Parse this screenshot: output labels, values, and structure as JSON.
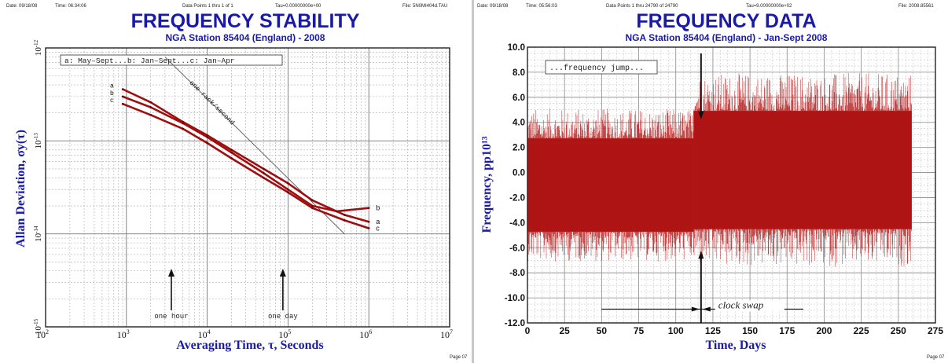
{
  "chart_data": [
    {
      "type": "line",
      "header": {
        "date": "Date: 09/18/08",
        "time": "Time: 06:34:06",
        "points": "Data Points 1 thru 1 of 1",
        "tau": "Tau=0.00000000e+00",
        "file": "File: 5N0MI404d.TAU"
      },
      "title": "FREQUENCY STABILITY",
      "subtitle": "NGA Station 85404 (England) - 2008",
      "xlabel": "Averaging Time, τ, Seconds",
      "ylabel": "Allan Deviation, σy(τ)",
      "x_scale": "log",
      "y_scale": "log",
      "xlim": [
        100,
        10000000
      ],
      "ylim": [
        1e-15,
        1e-12
      ],
      "x_ticks": [
        {
          "base": "10",
          "exp": "2"
        },
        {
          "base": "10",
          "exp": "3"
        },
        {
          "base": "10",
          "exp": "4"
        },
        {
          "base": "10",
          "exp": "5"
        },
        {
          "base": "10",
          "exp": "6"
        },
        {
          "base": "10",
          "exp": "7"
        }
      ],
      "y_ticks": [
        {
          "base": "10",
          "exp": "-12"
        },
        {
          "base": "10",
          "exp": "-13"
        },
        {
          "base": "10",
          "exp": "-14"
        },
        {
          "base": "10",
          "exp": "-15"
        }
      ],
      "grid": true,
      "legend_box": "a: May–Sept...b: Jan–Sept...c: Jan–Apr",
      "reference_line": {
        "label": "one rack/second",
        "points": [
          [
            3000,
            8e-13
          ],
          [
            500000,
            1e-14
          ]
        ]
      },
      "annotations": [
        {
          "label": "one hour",
          "x": 3600
        },
        {
          "label": "one day",
          "x": 86400
        }
      ],
      "series": [
        {
          "name": "a",
          "points": [
            [
              900,
              3.6e-13
            ],
            [
              2000,
              2.6e-13
            ],
            [
              5000,
              1.6e-13
            ],
            [
              10000,
              1.15e-13
            ],
            [
              20000,
              8e-14
            ],
            [
              50000,
              5e-14
            ],
            [
              100000,
              3.5e-14
            ],
            [
              200000,
              2.3e-14
            ],
            [
              500000,
              1.6e-14
            ],
            [
              1000000,
              1.35e-14
            ]
          ]
        },
        {
          "name": "b",
          "points": [
            [
              900,
              3e-13
            ],
            [
              2000,
              2.3e-13
            ],
            [
              5000,
              1.55e-13
            ],
            [
              10000,
              1.1e-13
            ],
            [
              20000,
              7.5e-14
            ],
            [
              50000,
              4.5e-14
            ],
            [
              100000,
              3e-14
            ],
            [
              200000,
              2e-14
            ],
            [
              400000,
              1.75e-14
            ],
            [
              1000000,
              1.9e-14
            ]
          ]
        },
        {
          "name": "c",
          "points": [
            [
              900,
              2.5e-13
            ],
            [
              2000,
              1.9e-13
            ],
            [
              5000,
              1.35e-13
            ],
            [
              10000,
              9.5e-14
            ],
            [
              20000,
              6.5e-14
            ],
            [
              50000,
              4e-14
            ],
            [
              100000,
              2.8e-14
            ],
            [
              200000,
              1.9e-14
            ],
            [
              500000,
              1.4e-14
            ],
            [
              1000000,
              1.15e-14
            ]
          ]
        }
      ],
      "page_mark": "Page 07"
    },
    {
      "type": "line",
      "header": {
        "date": "Date: 09/18/08",
        "time": "Time: 05:56:03",
        "points": "Data Points 1 thru 24790 of 24790",
        "tau": "Tau=9.00000000e+02",
        "file": "File: 2008.85561"
      },
      "title": "FREQUENCY DATA",
      "subtitle": "NGA Station 85404 (England) - Jan-Sept 2008",
      "xlabel": "Time, Days",
      "ylabel": "Frequency, pp10¹³",
      "xlim": [
        0,
        275
      ],
      "ylim": [
        -12,
        10
      ],
      "x_ticks": [
        "0",
        "25",
        "50",
        "75",
        "100",
        "125",
        "150",
        "175",
        "200",
        "225",
        "250",
        "275"
      ],
      "y_ticks": [
        "10.0",
        "8.0",
        "6.0",
        "4.0",
        "2.0",
        "0.0",
        "-2.0",
        "-4.0",
        "-6.0",
        "-8.0",
        "-10.0",
        "-12.0"
      ],
      "y_tick_values": [
        10,
        8,
        6,
        4,
        2,
        0,
        -2,
        -4,
        -6,
        -8,
        -10,
        -12
      ],
      "grid": true,
      "noise_segments": [
        {
          "x0": 0,
          "x1": 112,
          "mean": -1.0,
          "amplitude": 6.0
        },
        {
          "x0": 112,
          "x1": 259,
          "mean": 0.2,
          "amplitude": 7.6
        }
      ],
      "annotations": [
        {
          "label": "...frequency jump...",
          "x": 117
        },
        {
          "label": "clock swap",
          "x": 117
        }
      ],
      "page_mark": "Page 07"
    }
  ]
}
